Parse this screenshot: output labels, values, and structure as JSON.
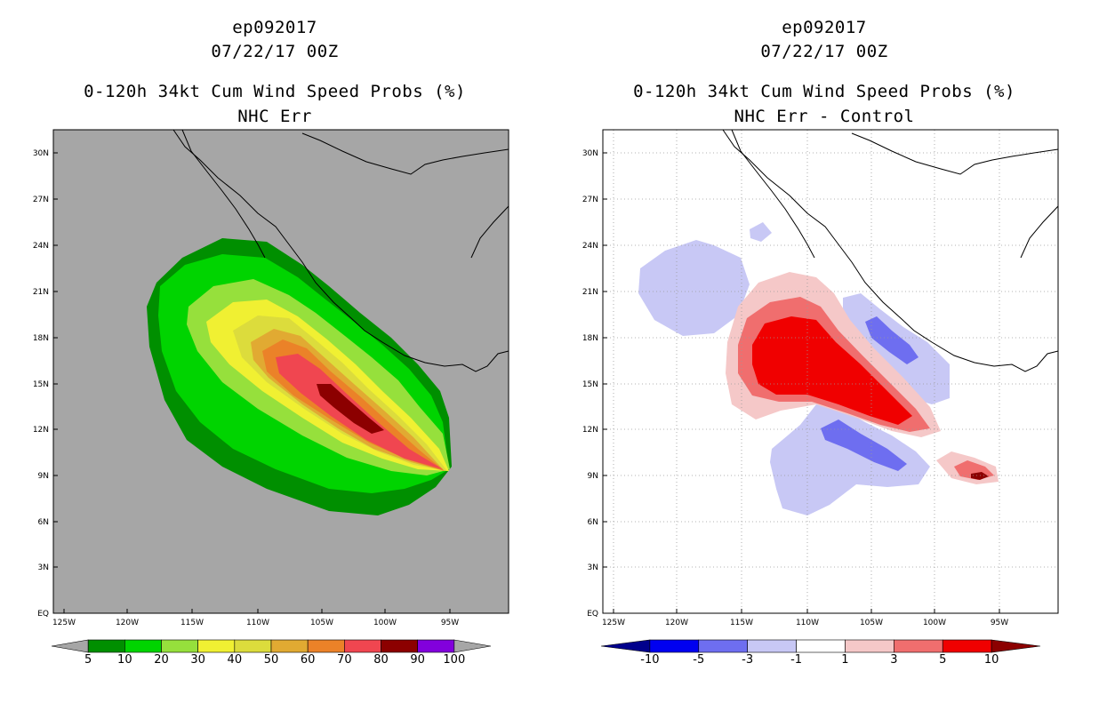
{
  "left": {
    "title_line1": "ep092017",
    "title_line2": "07/22/17 00Z",
    "title_line3": "0-120h 34kt Cum Wind Speed Probs (%)",
    "title_line4": "NHC Err",
    "background_color": "#a6a6a6",
    "colorbar": {
      "colors": [
        "#a6a6a6",
        "#008f00",
        "#00d400",
        "#96e03c",
        "#f0f032",
        "#dcdc3c",
        "#e1aa32",
        "#eb8228",
        "#f04650",
        "#8c0000",
        "#8200dc",
        "#a6a6a6"
      ],
      "labels": [
        "5",
        "10",
        "20",
        "30",
        "40",
        "50",
        "60",
        "70",
        "80",
        "90",
        "100"
      ]
    }
  },
  "right": {
    "title_line1": "ep092017",
    "title_line2": "07/22/17 00Z",
    "title_line3": "0-120h 34kt Cum Wind Speed Probs (%)",
    "title_line4": "NHC Err - Control",
    "background_color": "#ffffff",
    "colorbar": {
      "colors": [
        "#00008c",
        "#0000f0",
        "#6e6ef0",
        "#c8c8f5",
        "#ffffff",
        "#f5c8c8",
        "#f06e6e",
        "#f00000",
        "#8c0000"
      ],
      "labels": [
        "-10",
        "-5",
        "-3",
        "-1",
        "1",
        "3",
        "5",
        "10"
      ]
    }
  },
  "map": {
    "lat_labels": [
      "EQ",
      "3N",
      "6N",
      "9N",
      "12N",
      "15N",
      "18N",
      "21N",
      "24N",
      "27N",
      "30N"
    ],
    "lon_labels": [
      "125W",
      "120W",
      "115W",
      "110W",
      "105W",
      "100W",
      "95W"
    ]
  }
}
